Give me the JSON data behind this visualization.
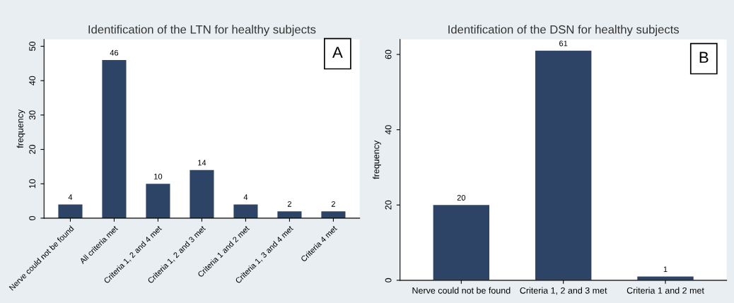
{
  "chart_data": [
    {
      "type": "bar",
      "title": "Identification of the LTN for healthy subjects",
      "ylabel": "frequency",
      "categories": [
        "Nerve could not be found",
        "All criteria met",
        "Criteria 1, 2 and 4 met",
        "Criteria 1, 2 and 3 met",
        "Criteria 1 and 2 met",
        "Criteria 1, 3 and 4 met",
        "Criteria 4 met"
      ],
      "values": [
        4,
        46,
        10,
        14,
        4,
        2,
        2
      ],
      "color": "#2e4466",
      "ylim": [
        0,
        52
      ],
      "yticks": [
        0,
        10,
        20,
        30,
        40,
        50
      ],
      "data_labels": true,
      "grid": false,
      "annotations": [
        "A"
      ]
    },
    {
      "type": "bar",
      "title": "Identification of the DSN for healthy subjects",
      "ylabel": "frequency",
      "categories": [
        "Nerve could not be found",
        "Criteria 1, 2 and 3 met",
        "Criteria 1 and 2 met"
      ],
      "values": [
        20,
        61,
        1
      ],
      "color": "#2e4466",
      "ylim": [
        0,
        64
      ],
      "yticks": [
        0,
        20,
        40,
        60
      ],
      "data_labels": true,
      "grid": false,
      "annotations": [
        "B"
      ]
    }
  ]
}
